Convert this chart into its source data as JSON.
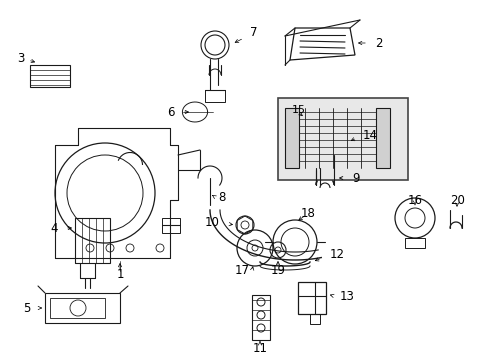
{
  "bg_color": "#ffffff",
  "fig_width": 4.89,
  "fig_height": 3.6,
  "dpi": 100,
  "line_color": "#1a1a1a",
  "label_color": "#000000",
  "label_fontsize": 8.5,
  "arrow_lw": 0.5
}
